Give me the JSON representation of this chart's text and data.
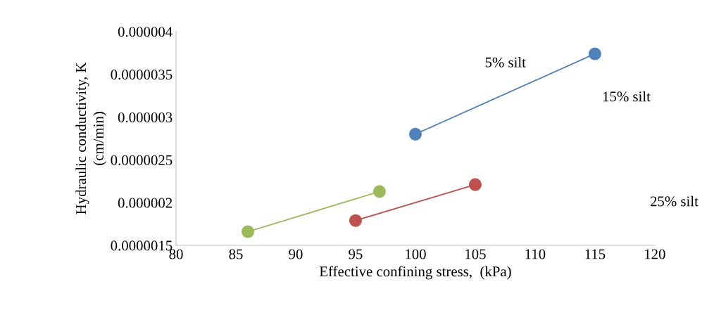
{
  "chart_data": {
    "type": "line",
    "xlabel": "Effective confining stress,  (kPa)",
    "ylabel": "Hydraulic conductivity, K\n(cm/min)",
    "series": [
      {
        "color": "#4f81bd",
        "x": [
          100,
          115
        ],
        "values": [
          2.8e-06,
          3.74e-06
        ]
      },
      {
        "color": "#c0504d",
        "x": [
          95,
          105
        ],
        "values": [
          1.79e-06,
          2.21e-06
        ]
      },
      {
        "color": "#9bbb59",
        "x": [
          86,
          97
        ],
        "values": [
          1.66e-06,
          2.13e-06
        ]
      }
    ],
    "xlim": [
      80,
      120
    ],
    "xticks": [
      80,
      85,
      90,
      95,
      100,
      105,
      110,
      115,
      120
    ],
    "ylim": [
      1.5e-06,
      4e-06
    ],
    "yticks": [
      {
        "value": 1.5e-06,
        "label": "0.0000015"
      },
      {
        "value": 2e-06,
        "label": "0.000002"
      },
      {
        "value": 2.5e-06,
        "label": "0.0000025"
      },
      {
        "value": 3e-06,
        "label": "0.000003"
      },
      {
        "value": 3.5e-06,
        "label": "0.0000035"
      },
      {
        "value": 4e-06,
        "label": "0.000004"
      }
    ],
    "annotations": [
      "5% silt",
      "15% silt",
      "25% silt"
    ],
    "marker": "circle",
    "grid": false,
    "legend": false
  }
}
